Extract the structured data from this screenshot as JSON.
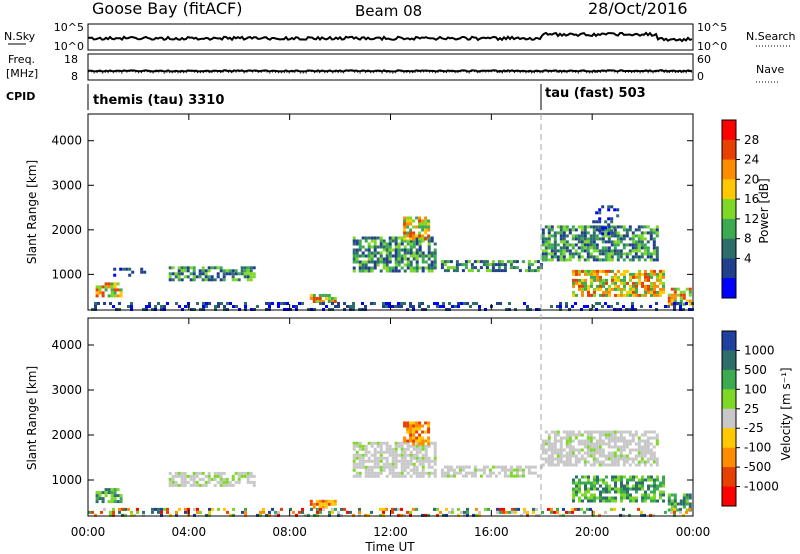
{
  "header": {
    "station": "Goose Bay (fitACF)",
    "beam": "Beam 08",
    "date": "28/Oct/2016"
  },
  "top_panels": {
    "nsky_label": "N.Sky",
    "nsky_ticks": [
      "10^5",
      "10^0"
    ],
    "nsearch_label": "N.Search",
    "nsearch_ticks": [
      "10^5",
      "10^0"
    ],
    "freq_label_1": "Freq.",
    "freq_label_2": "[MHz]",
    "freq_ticks": [
      "18",
      "8"
    ],
    "nave_label": "Nave",
    "nave_ticks": [
      "60",
      "0"
    ],
    "cpid_label": "CPID",
    "cpid_1": "themis (tau) 3310",
    "cpid_2": "tau (fast) 503"
  },
  "power_colorbar": {
    "label": "Power [dB]",
    "ticks": [
      "28",
      "24",
      "20",
      "16",
      "12",
      "8",
      "4"
    ],
    "colors": [
      "#ff0000",
      "#e84000",
      "#ff8c00",
      "#ffc800",
      "#7dd828",
      "#3caa50",
      "#2e6e6a",
      "#20408e",
      "#0000ff"
    ]
  },
  "velocity_colorbar": {
    "label": "Velocity [m s⁻¹]",
    "ticks": [
      "1000",
      "500",
      "100",
      "25",
      "-25",
      "-100",
      "-500",
      "-1000"
    ],
    "colors": [
      "#2040a0",
      "#2e6e6a",
      "#3caa50",
      "#7dd828",
      "#c8c8c8",
      "#ffc800",
      "#ff8c00",
      "#e84000",
      "#ff0000"
    ]
  },
  "x_axis": {
    "label": "Time UT",
    "ticks": [
      "00:00",
      "04:00",
      "08:00",
      "12:00",
      "16:00",
      "20:00",
      "00:00"
    ]
  },
  "chart_data": [
    {
      "type": "heatmap",
      "name": "power",
      "ylabel": "Slant Range [km]",
      "xlabel": "",
      "yticks": [
        1000,
        2000,
        3000,
        4000
      ],
      "ylim": [
        200,
        4600
      ],
      "xlim_hours": [
        0,
        24
      ],
      "regions": [
        {
          "t0": 0.3,
          "t1": 1.3,
          "r0": 520,
          "r1": 820,
          "level": "high"
        },
        {
          "t0": 1.0,
          "t1": 2.2,
          "r0": 950,
          "r1": 1150,
          "level": "low"
        },
        {
          "t0": 3.2,
          "t1": 6.6,
          "r0": 900,
          "r1": 1180,
          "level": "mid"
        },
        {
          "t0": 8.8,
          "t1": 9.8,
          "r0": 380,
          "r1": 560,
          "level": "high"
        },
        {
          "t0": 10.5,
          "t1": 13.8,
          "r0": 1050,
          "r1": 1850,
          "level": "mid"
        },
        {
          "t0": 12.5,
          "t1": 13.5,
          "r0": 1800,
          "r1": 2300,
          "level": "high"
        },
        {
          "t0": 14.0,
          "t1": 18.0,
          "r0": 1100,
          "r1": 1320,
          "level": "mid"
        },
        {
          "t0": 18.0,
          "t1": 22.6,
          "r0": 1300,
          "r1": 2100,
          "level": "mid"
        },
        {
          "t0": 20.0,
          "t1": 21.0,
          "r0": 1900,
          "r1": 2550,
          "level": "low"
        },
        {
          "t0": 19.2,
          "t1": 22.8,
          "r0": 500,
          "r1": 1100,
          "level": "high"
        },
        {
          "t0": 23.0,
          "t1": 23.9,
          "r0": 300,
          "r1": 700,
          "level": "high"
        },
        {
          "t0": 0.0,
          "t1": 24.0,
          "r0": 200,
          "r1": 380,
          "level": "low"
        }
      ]
    },
    {
      "type": "heatmap",
      "name": "velocity",
      "ylabel": "Slant Range [km]",
      "xlabel": "Time UT",
      "yticks": [
        1000,
        2000,
        3000,
        4000
      ],
      "ylim": [
        200,
        4600
      ],
      "xlim_hours": [
        0,
        24
      ],
      "regions": [
        {
          "t0": 0.3,
          "t1": 1.3,
          "r0": 520,
          "r1": 820,
          "level": "pos"
        },
        {
          "t0": 3.2,
          "t1": 6.6,
          "r0": 900,
          "r1": 1180,
          "level": "zero"
        },
        {
          "t0": 8.8,
          "t1": 9.8,
          "r0": 380,
          "r1": 560,
          "level": "neg"
        },
        {
          "t0": 10.5,
          "t1": 13.8,
          "r0": 1050,
          "r1": 1850,
          "level": "zero"
        },
        {
          "t0": 12.5,
          "t1": 13.5,
          "r0": 1800,
          "r1": 2300,
          "level": "neg"
        },
        {
          "t0": 14.0,
          "t1": 18.0,
          "r0": 1100,
          "r1": 1320,
          "level": "zero"
        },
        {
          "t0": 18.0,
          "t1": 22.6,
          "r0": 1300,
          "r1": 2100,
          "level": "zero"
        },
        {
          "t0": 19.2,
          "t1": 22.8,
          "r0": 500,
          "r1": 1100,
          "level": "pos"
        },
        {
          "t0": 23.0,
          "t1": 23.9,
          "r0": 300,
          "r1": 700,
          "level": "pos"
        },
        {
          "t0": 0.0,
          "t1": 24.0,
          "r0": 200,
          "r1": 380,
          "level": "mixed"
        }
      ]
    }
  ]
}
